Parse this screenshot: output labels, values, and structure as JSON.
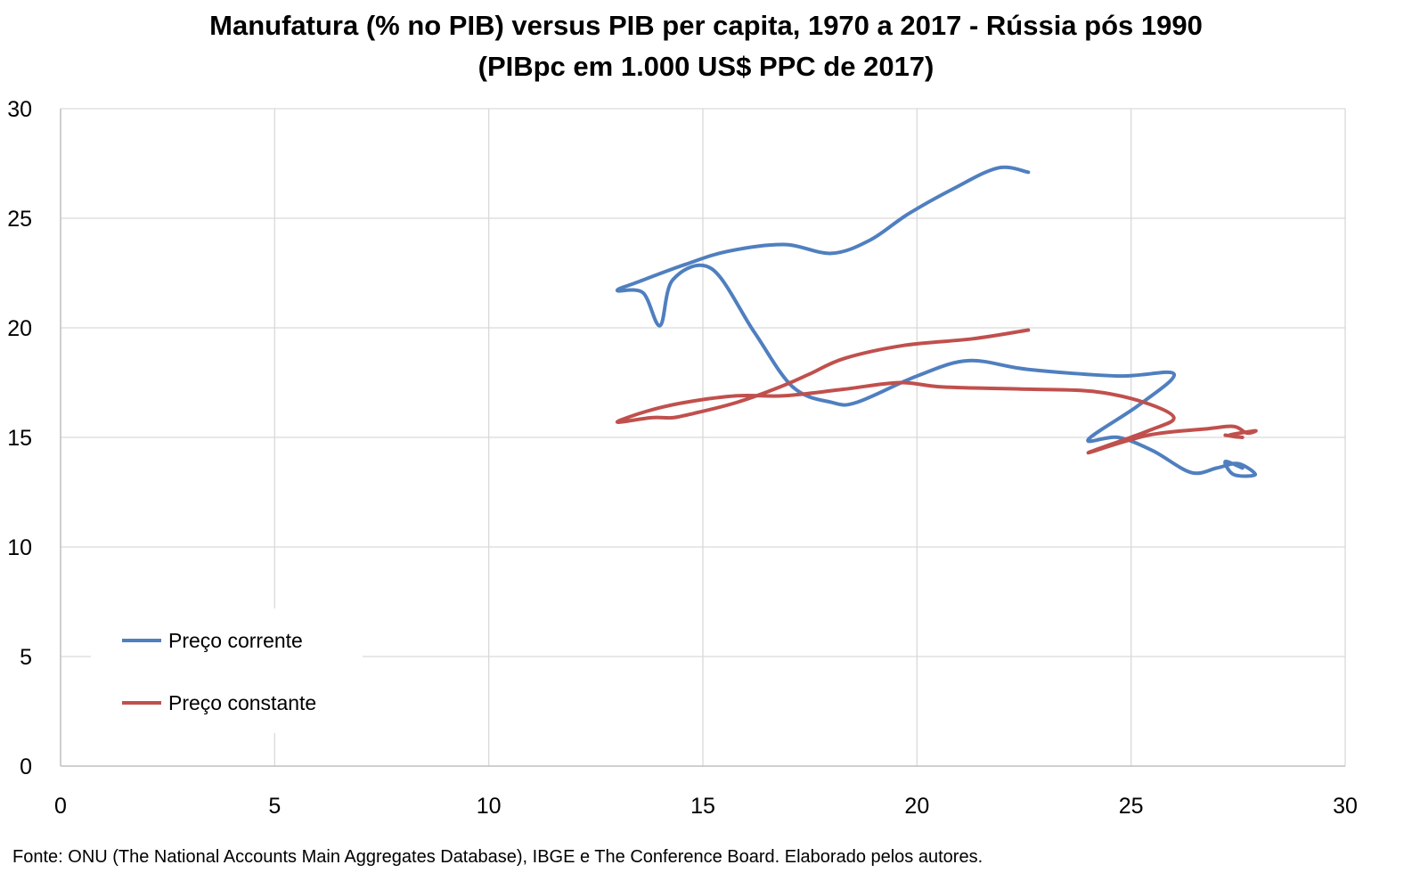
{
  "chart_data": {
    "type": "line",
    "title": "Manufatura (% no PIB) versus PIB per capita, 1970 a 2017 - Rússia pós 1990",
    "subtitle": "(PIBpc em 1.000 US$ PPC de 2017)",
    "xlabel": "",
    "ylabel": "",
    "xlim": [
      0,
      30
    ],
    "ylim": [
      0,
      30
    ],
    "x_ticks": [
      0,
      5,
      10,
      15,
      20,
      25,
      30
    ],
    "y_ticks": [
      0,
      5,
      10,
      15,
      20,
      25,
      30
    ],
    "grid": true,
    "legend_position": "bottom-left",
    "series": [
      {
        "name": "Preço corrente",
        "color": "#4f7fbf",
        "points": [
          [
            22.6,
            27.1
          ],
          [
            21.9,
            27.3
          ],
          [
            20.9,
            26.4
          ],
          [
            19.8,
            25.2
          ],
          [
            18.9,
            24.0
          ],
          [
            18.0,
            23.4
          ],
          [
            16.9,
            23.8
          ],
          [
            15.6,
            23.5
          ],
          [
            14.6,
            22.9
          ],
          [
            13.5,
            22.1
          ],
          [
            13.0,
            21.7
          ],
          [
            13.6,
            21.6
          ],
          [
            14.0,
            20.1
          ],
          [
            14.3,
            22.2
          ],
          [
            15.2,
            22.7
          ],
          [
            16.2,
            19.8
          ],
          [
            17.1,
            17.3
          ],
          [
            18.0,
            16.6
          ],
          [
            18.6,
            16.6
          ],
          [
            20.0,
            17.8
          ],
          [
            21.2,
            18.5
          ],
          [
            22.6,
            18.1
          ],
          [
            24.7,
            17.8
          ],
          [
            26.0,
            17.9
          ],
          [
            25.2,
            16.5
          ],
          [
            24.0,
            14.9
          ],
          [
            24.7,
            15.0
          ],
          [
            25.5,
            14.4
          ],
          [
            26.4,
            13.4
          ],
          [
            27.0,
            13.6
          ],
          [
            27.5,
            13.8
          ],
          [
            27.9,
            13.3
          ],
          [
            27.4,
            13.3
          ],
          [
            27.2,
            13.9
          ],
          [
            27.6,
            13.6
          ]
        ]
      },
      {
        "name": "Preço constante",
        "color": "#c0504d",
        "points": [
          [
            22.6,
            19.9
          ],
          [
            21.3,
            19.5
          ],
          [
            19.7,
            19.2
          ],
          [
            18.3,
            18.6
          ],
          [
            17.5,
            17.9
          ],
          [
            16.8,
            17.3
          ],
          [
            15.8,
            16.6
          ],
          [
            14.8,
            16.1
          ],
          [
            14.3,
            15.9
          ],
          [
            13.8,
            15.9
          ],
          [
            13.0,
            15.7
          ],
          [
            13.7,
            16.2
          ],
          [
            14.6,
            16.6
          ],
          [
            15.8,
            16.9
          ],
          [
            16.9,
            16.9
          ],
          [
            18.3,
            17.2
          ],
          [
            19.6,
            17.5
          ],
          [
            20.6,
            17.3
          ],
          [
            22.6,
            17.2
          ],
          [
            24.1,
            17.1
          ],
          [
            25.3,
            16.6
          ],
          [
            26.0,
            15.9
          ],
          [
            25.4,
            15.3
          ],
          [
            24.0,
            14.3
          ],
          [
            25.4,
            15.1
          ],
          [
            26.8,
            15.4
          ],
          [
            27.4,
            15.5
          ],
          [
            27.7,
            15.2
          ],
          [
            27.9,
            15.3
          ],
          [
            27.3,
            15.1
          ],
          [
            27.6,
            15.0
          ],
          [
            27.2,
            15.1
          ]
        ]
      }
    ],
    "source": "Fonte: ONU (The National Accounts Main Aggregates Database), IBGE e The Conference Board. Elaborado pelos autores."
  }
}
